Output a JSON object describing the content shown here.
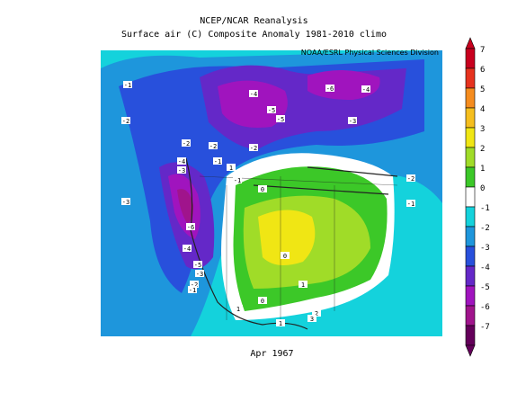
{
  "title": {
    "line1": "NCEP/NCAR Reanalysis",
    "line2": "Surface air (C) Composite Anomaly 1981-2010 climo"
  },
  "credit": "NOAA/ESRL Physical Sciences Division",
  "period": "Apr 1967",
  "colorbar": {
    "levels": [
      {
        "label": "7",
        "color": "#c8001e"
      },
      {
        "label": "6",
        "color": "#e6321e"
      },
      {
        "label": "5",
        "color": "#f58c1e"
      },
      {
        "label": "4",
        "color": "#f5be1e"
      },
      {
        "label": "3",
        "color": "#f0e614"
      },
      {
        "label": "2",
        "color": "#a0dc28"
      },
      {
        "label": "1",
        "color": "#3cc828"
      },
      {
        "label": "0",
        "color": "#ffffff"
      },
      {
        "label": "-1",
        "color": "#14d2dc"
      },
      {
        "label": "-2",
        "color": "#1e96dc"
      },
      {
        "label": "-3",
        "color": "#2850dc"
      },
      {
        "label": "-4",
        "color": "#6428c8"
      },
      {
        "label": "-5",
        "color": "#a014be"
      },
      {
        "label": "-6",
        "color": "#a0148c"
      },
      {
        "label": "-7",
        "color": "#64005a"
      }
    ],
    "extra_labels": [
      "0"
    ]
  },
  "map_labels": [
    "-1",
    "-2",
    "-3",
    "-4",
    "-5",
    "-6",
    "-2",
    "-4",
    "-3",
    "-2",
    "-2",
    "-1",
    "-3",
    "-4",
    "-5",
    "-6",
    "-4",
    "-5",
    "-3",
    "-2",
    "-1",
    "-2",
    "-1",
    "-1",
    "1",
    "0",
    "0",
    "1",
    "2",
    "3",
    "1",
    "0",
    "1"
  ]
}
